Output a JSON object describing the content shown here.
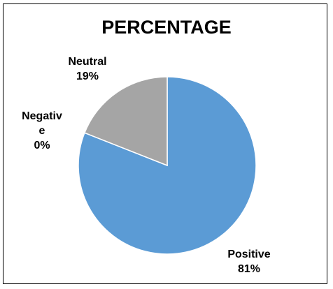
{
  "chart_data": {
    "type": "pie",
    "title": "PERCENTAGE",
    "categories": [
      "Positive",
      "Neutral",
      "Negative"
    ],
    "values": [
      81,
      19,
      0
    ],
    "value_suffix": "%",
    "colors": [
      "#5b9bd5",
      "#a5a5a5",
      "#ed7d31"
    ],
    "labels": {
      "positive": {
        "name": "Positive",
        "value": "81%"
      },
      "neutral": {
        "name": "Neutral",
        "value": "19%"
      },
      "negative": {
        "name_line1": "Negativ",
        "name_line2": "e",
        "value": "0%"
      }
    },
    "legend": "none"
  }
}
